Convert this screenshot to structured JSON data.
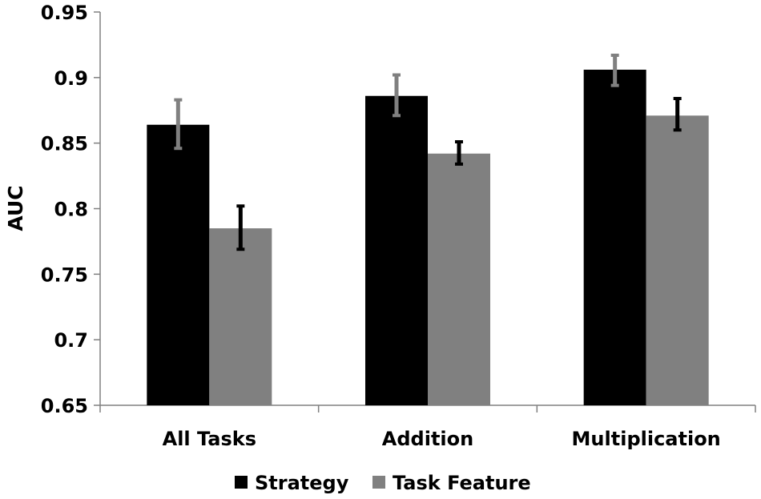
{
  "chart_data": {
    "type": "bar",
    "title": "",
    "xlabel": "",
    "ylabel": "AUC",
    "ylim": [
      0.65,
      0.95
    ],
    "yticks": [
      "0.65",
      "0.7",
      "0.75",
      "0.8",
      "0.85",
      "0.9",
      "0.95"
    ],
    "categories": [
      "All Tasks",
      "Addition",
      "Multiplication"
    ],
    "series": [
      {
        "name": "Strategy",
        "color": "#000000",
        "error_bar_color": "#808080",
        "values": [
          0.864,
          0.886,
          0.906
        ],
        "error_low": [
          0.846,
          0.871,
          0.894
        ],
        "error_high": [
          0.883,
          0.902,
          0.917
        ]
      },
      {
        "name": "Task Feature",
        "color": "#808080",
        "error_bar_color": "#000000",
        "values": [
          0.785,
          0.842,
          0.871
        ],
        "error_low": [
          0.769,
          0.834,
          0.86
        ],
        "error_high": [
          0.802,
          0.851,
          0.884
        ]
      }
    ],
    "legend": {
      "position": "bottom-center"
    },
    "grid": false
  }
}
